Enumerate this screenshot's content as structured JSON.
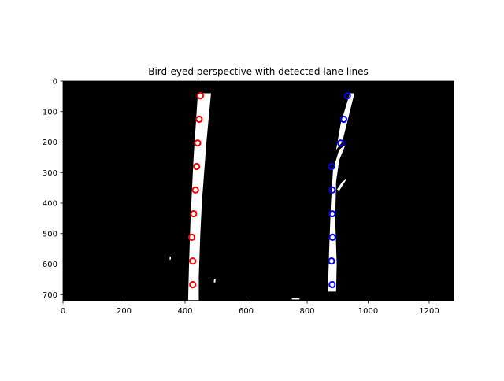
{
  "chart_data": {
    "type": "scatter",
    "title": "Bird-eyed perspective with detected lane lines",
    "xlabel": "",
    "ylabel": "",
    "xlim": [
      0,
      1280
    ],
    "ylim": [
      720,
      0
    ],
    "x_ticks": [
      0,
      200,
      400,
      600,
      800,
      1000,
      1200
    ],
    "y_ticks": [
      0,
      100,
      200,
      300,
      400,
      500,
      600,
      700
    ],
    "background": "binary lane-pixel image: white lane pixels on black",
    "grid": false,
    "legend": null,
    "series": [
      {
        "color": "#ff0000",
        "marker": "circle-outline",
        "points": [
          {
            "x": 450,
            "y": 48
          },
          {
            "x": 446,
            "y": 125
          },
          {
            "x": 441,
            "y": 203
          },
          {
            "x": 438,
            "y": 280
          },
          {
            "x": 434,
            "y": 357
          },
          {
            "x": 428,
            "y": 435
          },
          {
            "x": 422,
            "y": 512
          },
          {
            "x": 425,
            "y": 590
          },
          {
            "x": 425,
            "y": 667
          }
        ]
      },
      {
        "color": "#0000ff",
        "marker": "circle-outline",
        "points": [
          {
            "x": 932,
            "y": 48
          },
          {
            "x": 920,
            "y": 125
          },
          {
            "x": 910,
            "y": 203
          },
          {
            "x": 880,
            "y": 280
          },
          {
            "x": 882,
            "y": 357
          },
          {
            "x": 882,
            "y": 435
          },
          {
            "x": 883,
            "y": 512
          },
          {
            "x": 880,
            "y": 590
          },
          {
            "x": 882,
            "y": 667
          }
        ]
      }
    ]
  }
}
